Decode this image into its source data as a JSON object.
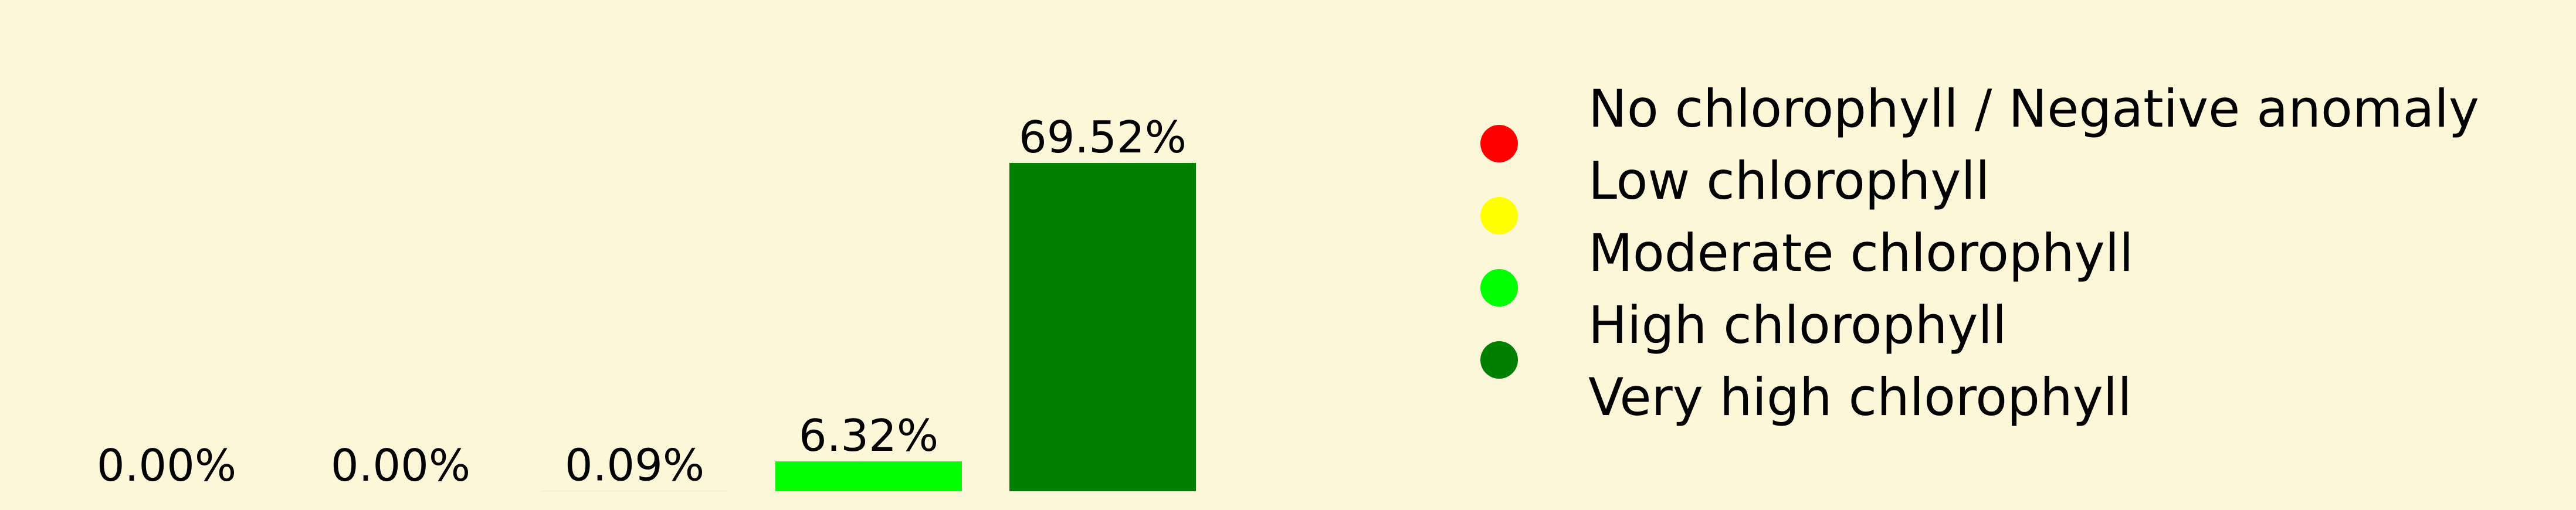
{
  "chart_data": {
    "type": "bar",
    "categories": [
      "No chlorophyll / Negative anomaly",
      "Low chlorophyll",
      "Moderate chlorophyll",
      "High chlorophyll",
      "Very high chlorophyll"
    ],
    "values": [
      0.0,
      0.0,
      0.09,
      6.32,
      69.52
    ],
    "data_labels": [
      "0.00%",
      "0.00%",
      "0.09%",
      "6.32%",
      "69.52%"
    ],
    "colors": [
      "#fdf7da",
      "#ff0000",
      "#ffff00",
      "#00ff00",
      "#008000"
    ],
    "ylim": [
      0,
      69.52
    ],
    "grid": false,
    "axes_visible": false,
    "legend_position": "right",
    "legend": [
      {
        "label": "No chlorophyll / Negative anomaly",
        "color": "#fdf7da"
      },
      {
        "label": "Low chlorophyll",
        "color": "#ff0000"
      },
      {
        "label": "Moderate chlorophyll",
        "color": "#ffff00"
      },
      {
        "label": "High chlorophyll",
        "color": "#00ff00"
      },
      {
        "label": "Very high chlorophyll",
        "color": "#008000"
      }
    ]
  }
}
